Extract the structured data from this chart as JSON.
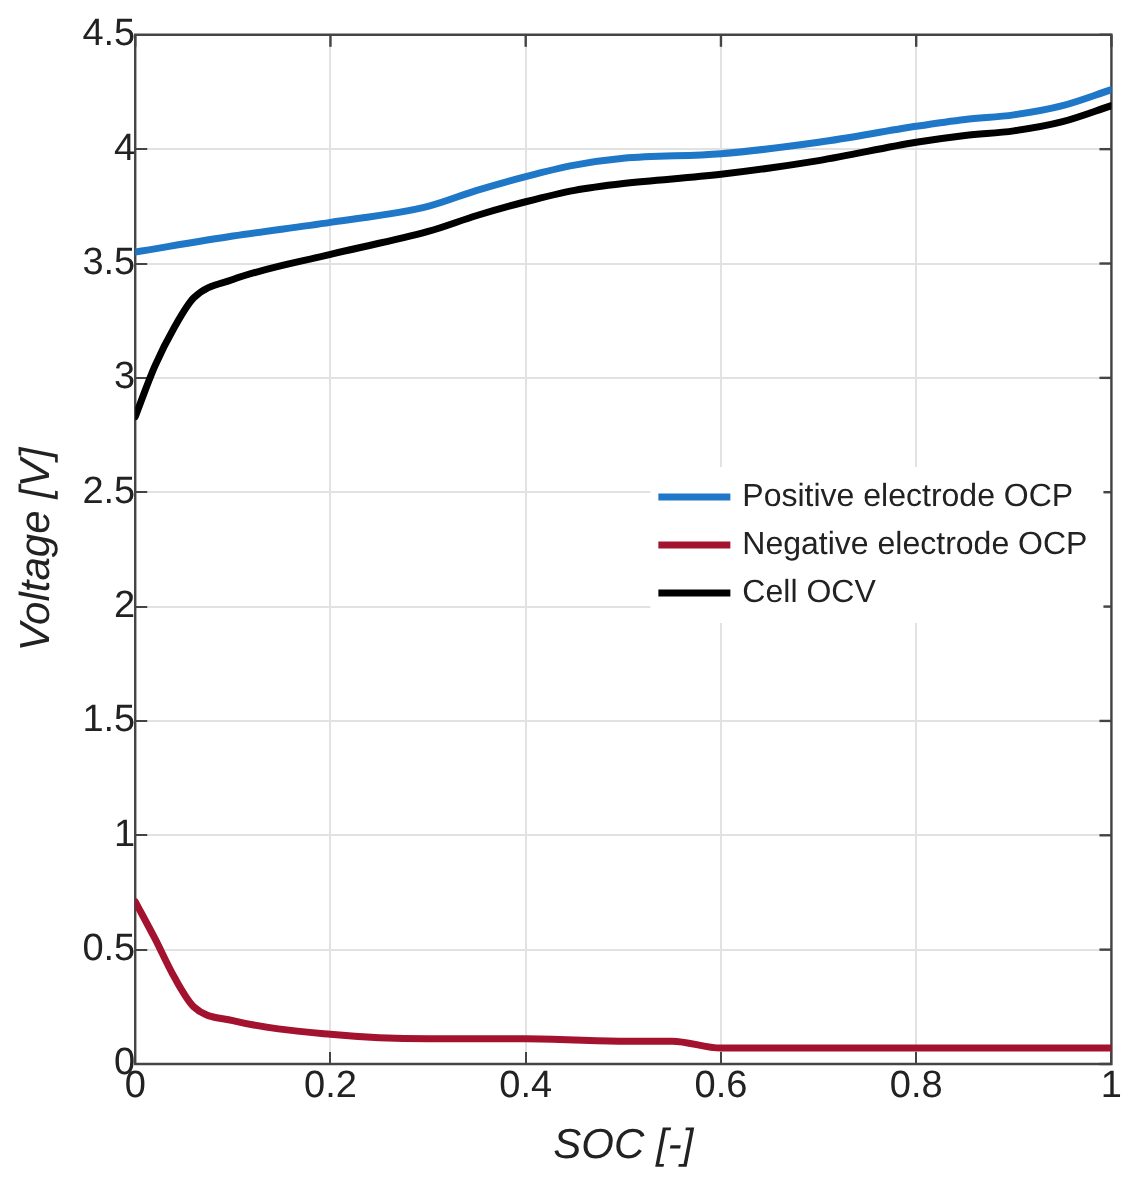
{
  "chart_data": {
    "type": "line",
    "xlabel": "SOC [-]",
    "ylabel": "Voltage [V]",
    "xlim": [
      0,
      1
    ],
    "xticks": [
      0,
      0.2,
      0.4,
      0.6,
      0.8,
      1
    ],
    "ylim": [
      0,
      4.5
    ],
    "yticks": [
      0,
      0.5,
      1,
      1.5,
      2,
      2.5,
      3,
      3.5,
      4,
      4.5
    ],
    "grid": true,
    "legend": "right",
    "marker": "none",
    "line_style": "solid",
    "series": [
      {
        "name": "Positive electrode OCP",
        "color": "#1f77c8",
        "x": [
          0,
          0.1,
          0.2,
          0.3,
          0.35,
          0.4,
          0.45,
          0.5,
          0.6,
          0.7,
          0.8,
          0.85,
          0.9,
          0.95,
          1
        ],
        "values": [
          3.55,
          3.62,
          3.68,
          3.75,
          3.82,
          3.88,
          3.93,
          3.96,
          3.98,
          4.03,
          4.1,
          4.13,
          4.15,
          4.19,
          4.26
        ]
      },
      {
        "name": "Negative electrode OCP",
        "color": "#a3122e",
        "x": [
          0,
          0.02,
          0.04,
          0.06,
          0.1,
          0.2,
          0.3,
          0.4,
          0.5,
          0.55,
          0.6,
          0.8,
          1
        ],
        "values": [
          0.71,
          0.55,
          0.38,
          0.25,
          0.19,
          0.13,
          0.11,
          0.11,
          0.1,
          0.1,
          0.07,
          0.07,
          0.07
        ]
      },
      {
        "name": "Cell OCV",
        "color": "#000000",
        "x": [
          0,
          0.02,
          0.04,
          0.06,
          0.1,
          0.2,
          0.3,
          0.35,
          0.4,
          0.45,
          0.5,
          0.6,
          0.7,
          0.8,
          0.85,
          0.9,
          0.95,
          1
        ],
        "values": [
          2.83,
          3.05,
          3.22,
          3.35,
          3.43,
          3.54,
          3.64,
          3.71,
          3.77,
          3.82,
          3.85,
          3.89,
          3.95,
          4.03,
          4.06,
          4.08,
          4.12,
          4.19
        ]
      }
    ]
  }
}
